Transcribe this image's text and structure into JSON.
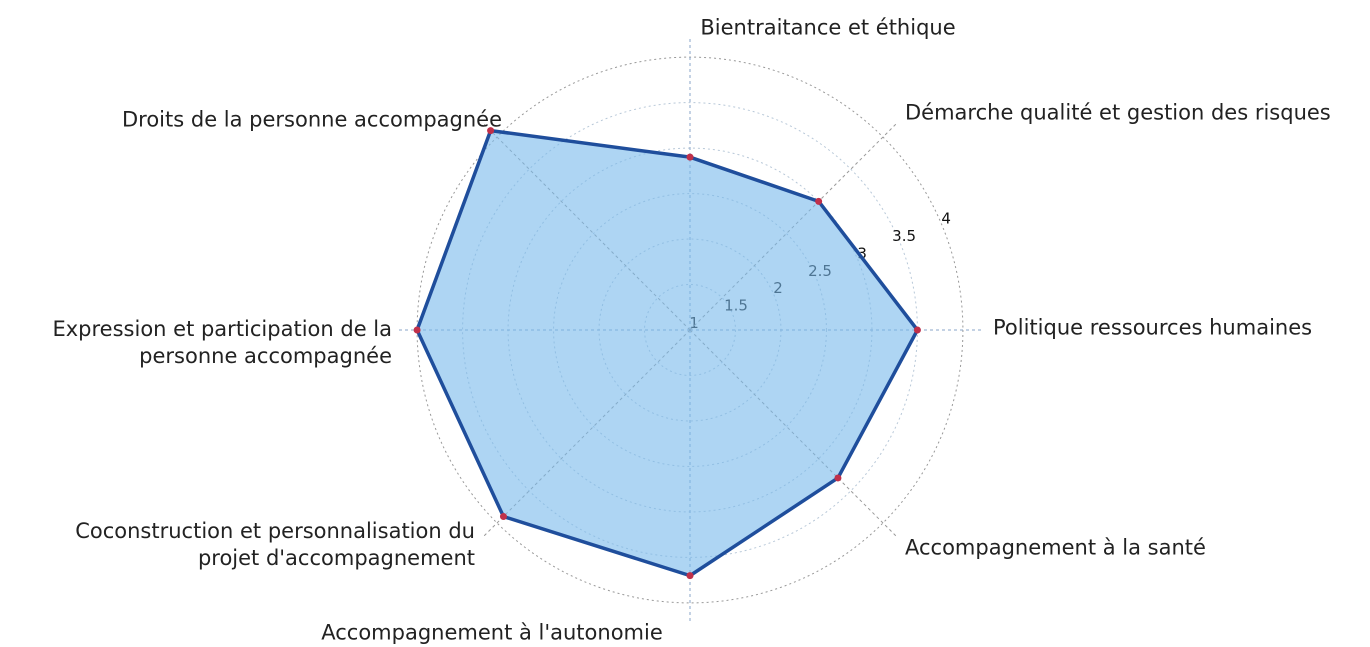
{
  "chart_data": {
    "type": "radar",
    "categories": [
      "Bientraitance et éthique",
      "Démarche qualité et gestion des risques",
      "Politique ressources humaines",
      "Accompagnement à la santé",
      "Accompagnement à l'autonomie",
      "Coconstruction et personnalisation du\nprojet d'accompagnement",
      "Expression et participation de la\npersonne accompagnée",
      "Droits de la personne accompagnée"
    ],
    "values": [
      2.9,
      3.0,
      3.5,
      3.3,
      3.7,
      3.9,
      4.0,
      4.1
    ],
    "color": "#1f4e9c",
    "fill": "rgba(120,185,235,0.6)",
    "marker_color": "#c0304a",
    "ylim": [
      1,
      4.1
    ],
    "yticks": [
      1,
      1.5,
      2,
      2.5,
      3,
      3.5,
      4
    ],
    "grid": true
  }
}
